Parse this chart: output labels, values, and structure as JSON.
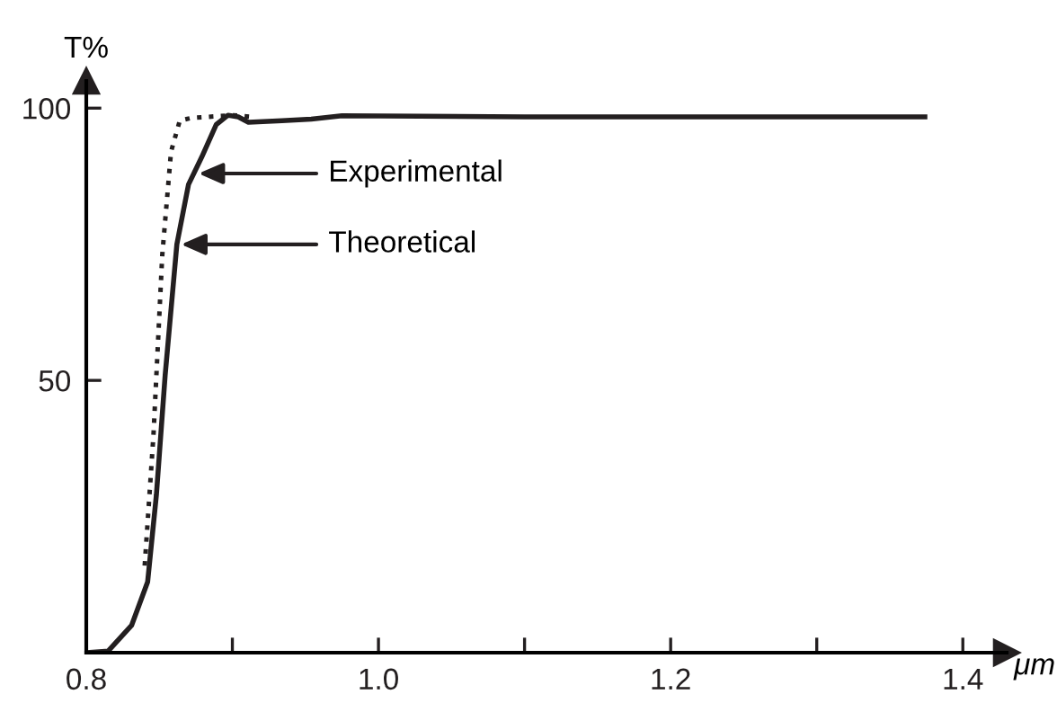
{
  "chart_data": {
    "type": "line",
    "xlabel": "μm",
    "ylabel": "T%",
    "xlim": [
      0.8,
      1.43
    ],
    "ylim": [
      0,
      105
    ],
    "xticks": [
      {
        "value": 0.8,
        "label": "0.8"
      },
      {
        "value": 0.9,
        "label": null
      },
      {
        "value": 1.0,
        "label": "1.0"
      },
      {
        "value": 1.1,
        "label": null
      },
      {
        "value": 1.2,
        "label": "1.2"
      },
      {
        "value": 1.3,
        "label": null
      },
      {
        "value": 1.4,
        "label": "1.4"
      }
    ],
    "yticks": [
      50,
      100
    ],
    "grid": false,
    "legend": false,
    "series": [
      {
        "color": "#231f20",
        "line_style": "solid",
        "x": [
          0.8,
          0.815,
          0.831,
          0.842,
          0.848,
          0.854,
          0.862,
          0.87,
          0.879,
          0.889,
          0.897,
          0.904,
          0.911,
          0.934,
          0.954,
          0.975,
          1.1,
          1.25,
          1.374
        ],
        "values": [
          0,
          0.3,
          5,
          13,
          29,
          51,
          75,
          86,
          91,
          97,
          98.7,
          98.4,
          97.4,
          97.7,
          98,
          98.6,
          98.4,
          98.4,
          98.4
        ]
      },
      {
        "color": "#231f20",
        "line_style": "dotted",
        "x": [
          0.84,
          0.846,
          0.852,
          0.858,
          0.864,
          0.872,
          0.9,
          0.914
        ],
        "values": [
          16,
          40,
          73,
          92,
          97.7,
          98.2,
          98.7,
          98.4
        ]
      }
    ],
    "annotations": [
      "Experimental",
      "Theoretical"
    ]
  }
}
